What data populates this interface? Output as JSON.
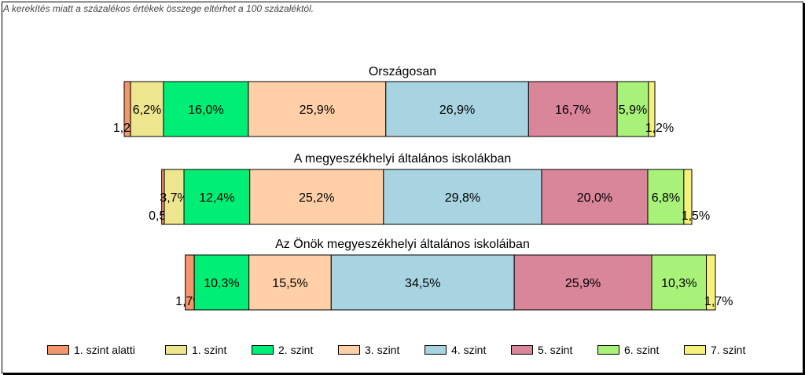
{
  "note": "A kerekítés miatt a  százalékos értékek összege eltérhet a 100 százaléktól.",
  "chart_data": {
    "type": "bar",
    "stacked": true,
    "orientation": "horizontal",
    "categories": [
      "1. szint alatti",
      "1. szint",
      "2. szint",
      "3. szint",
      "4. szint",
      "5. szint",
      "6. szint",
      "7. szint"
    ],
    "colors": [
      "#F4956A",
      "#EEE68E",
      "#00EE76",
      "#FFD0A8",
      "#A8D3E0",
      "#D9859A",
      "#A8F27A",
      "#F4F27A"
    ],
    "groups": [
      {
        "title": "Országosan",
        "values": [
          1.2,
          6.2,
          16.0,
          25.9,
          26.9,
          16.7,
          5.9,
          1.2
        ],
        "labels": [
          "1,2%",
          "6,2%",
          "16,0%",
          "25,9%",
          "26,9%",
          "16,7%",
          "5,9%",
          "1,2%"
        ]
      },
      {
        "title": "A megyeszékhelyi általános iskolákban",
        "values": [
          0.5,
          3.7,
          12.4,
          25.2,
          29.8,
          20.0,
          6.8,
          1.5
        ],
        "labels": [
          "0,5%",
          "3,7%",
          "12,4%",
          "25,2%",
          "29,8%",
          "20,0%",
          "6,8%",
          "1,5%"
        ]
      },
      {
        "title": "Az Önök megyeszékhelyi általános iskoláiban",
        "values": [
          1.7,
          0,
          10.3,
          15.5,
          34.5,
          25.9,
          10.3,
          1.7
        ],
        "labels": [
          "1,7%",
          "",
          "10,3%",
          "15,5%",
          "34,5%",
          "25,9%",
          "10,3%",
          "1,7%"
        ]
      }
    ],
    "legend_position": "bottom",
    "grid": false
  }
}
